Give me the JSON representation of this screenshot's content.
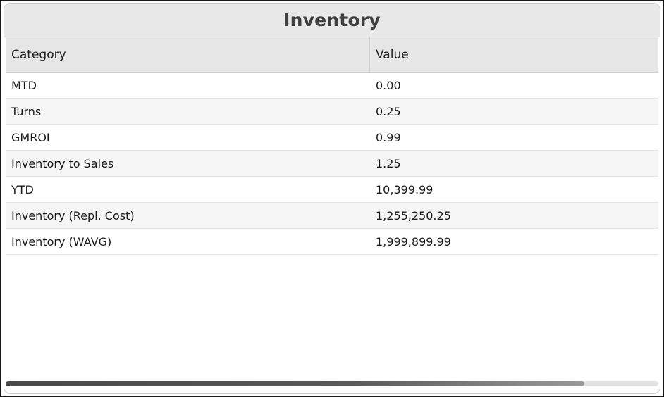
{
  "panel": {
    "title": "Inventory"
  },
  "table": {
    "columns": [
      "Category",
      "Value"
    ],
    "rows": [
      {
        "category": "MTD",
        "value": "0.00"
      },
      {
        "category": "Turns",
        "value": "0.25"
      },
      {
        "category": "GMROI",
        "value": "0.99"
      },
      {
        "category": "Inventory to Sales",
        "value": "1.25"
      },
      {
        "category": "YTD",
        "value": "10,399.99"
      },
      {
        "category": "Inventory (Repl. Cost)",
        "value": "1,255,250.25"
      },
      {
        "category": "Inventory (WAVG)",
        "value": "1,999,899.99"
      }
    ]
  },
  "scrollbar": {
    "thumb_fraction": 0.887
  },
  "colors": {
    "header_bg": "#e8e8e8",
    "alt_row_bg": "#f5f5f5",
    "title_color": "#404040"
  }
}
